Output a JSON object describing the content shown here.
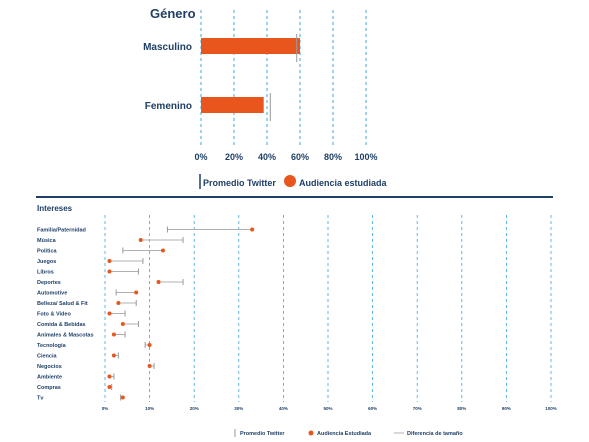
{
  "chart_data": [
    {
      "type": "bar",
      "orientation": "horizontal",
      "title": "Género",
      "categories": [
        "Masculino",
        "Femenino"
      ],
      "series": [
        {
          "name": "Audiencia estudiada",
          "values": [
            60,
            38
          ]
        },
        {
          "name": "Promedio Twitter",
          "values": [
            58,
            42
          ]
        }
      ],
      "xlim": [
        0,
        100
      ],
      "x_ticks": [
        "0%",
        "20%",
        "40%",
        "60%",
        "80%",
        "100%"
      ],
      "grid": true,
      "legend": {
        "position": "bottom",
        "entries": [
          "Promedio Twitter",
          "Audiencia estudiada"
        ]
      },
      "colors": {
        "bar": "#e8561d",
        "twitter": "#9a9a9a",
        "grid": "#3ba7d8",
        "text": "#1f3f66"
      }
    },
    {
      "type": "scatter",
      "title": "Intereses",
      "categories": [
        "Familia/Paternidad",
        "Música",
        "Política",
        "Juegos",
        "Libros",
        "Deportes",
        "Automotive",
        "Belleza/ Salud & Fit",
        "Foto & Video",
        "Comida & Bebidas",
        "Animales & Mascotas",
        "Tecnología",
        "Ciencia",
        "Negocios",
        "Ambiente",
        "Compras",
        "Tv"
      ],
      "series": [
        {
          "name": "Audiencia Estudiada",
          "values": [
            33,
            8,
            13,
            1,
            1,
            12,
            7,
            3,
            1,
            4,
            2,
            10,
            2,
            10,
            1,
            1,
            4
          ]
        },
        {
          "name": "Promedio Twitter",
          "values": [
            14,
            17.5,
            4,
            8.5,
            7.5,
            17.5,
            2.5,
            7,
            4.5,
            7.5,
            4.5,
            9,
            3,
            11,
            2,
            1.5,
            3.5
          ]
        }
      ],
      "xlim": [
        0,
        100
      ],
      "x_ticks": [
        "0%",
        "10%",
        "20%",
        "30%",
        "40%",
        "50%",
        "60%",
        "70%",
        "80%",
        "90%",
        "100%"
      ],
      "grid": true,
      "legend": {
        "position": "bottom",
        "entries": [
          "Promedio Twitter",
          "Audiencia Estudiada",
          "Diferencia de tamaño"
        ]
      },
      "colors": {
        "dot": "#e8561d",
        "twitter": "#9a9a9a",
        "range": "#b0b0b0",
        "grid": "#3ba7d8",
        "divider": "#1f3f66",
        "text": "#1f3f66"
      }
    }
  ]
}
